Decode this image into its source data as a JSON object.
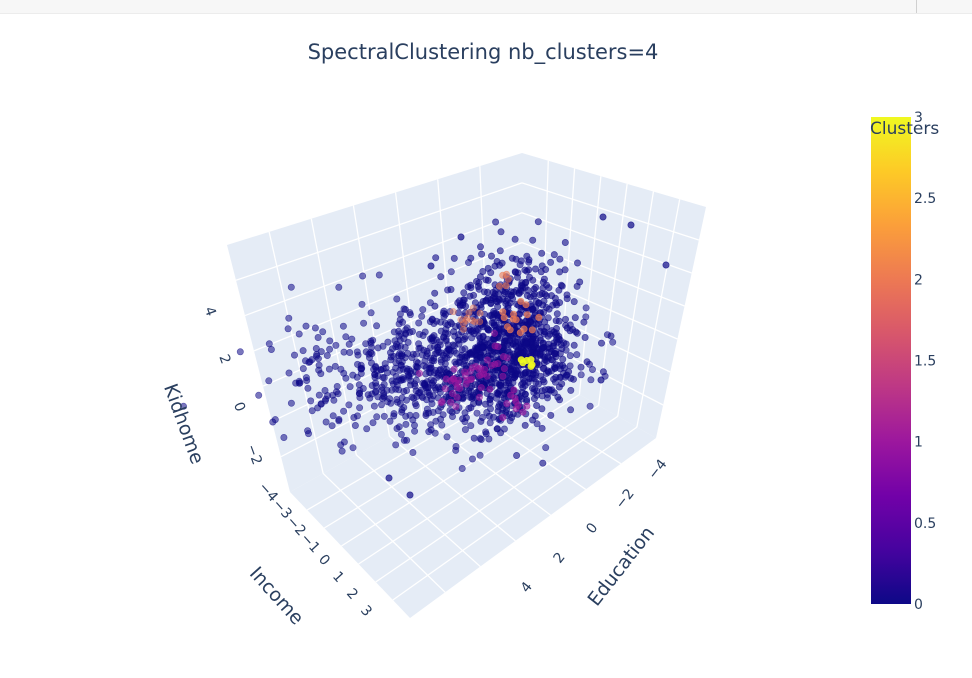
{
  "chart_data": {
    "type": "scatter",
    "title": "SpectralClustering nb_clusters=4",
    "axes": {
      "x": {
        "label": "Education",
        "ticks": [
          "−4",
          "−2",
          "0",
          "2",
          "4"
        ]
      },
      "y": {
        "label": "Income",
        "ticks": [
          "−4",
          "−3",
          "−2",
          "−1",
          "0",
          "1",
          "2",
          "3"
        ]
      },
      "z": {
        "label": "Kidhome",
        "ticks": [
          "−2",
          "0",
          "2",
          "4"
        ]
      }
    },
    "grid": true,
    "colorbar": {
      "title": "Clusters",
      "range": [
        0,
        3
      ],
      "ticks": [
        "0",
        "0.5",
        "1",
        "1.5",
        "2",
        "2.5",
        "3"
      ],
      "colors": [
        "#0d0887",
        "#46039f",
        "#7201a8",
        "#9c179e",
        "#bd3786",
        "#d8576b",
        "#ed7953",
        "#fb9f3a",
        "#fdca26",
        "#f0f921"
      ]
    },
    "series": [
      {
        "cluster": 0,
        "color": "#0d0887",
        "approx_points": 1800
      },
      {
        "cluster": 1,
        "color": "#9c179e",
        "approx_points": 60
      },
      {
        "cluster": 2,
        "color": "#ed7953",
        "approx_points": 30
      },
      {
        "cluster": 3,
        "color": "#f0f921",
        "approx_points": 6
      }
    ]
  }
}
